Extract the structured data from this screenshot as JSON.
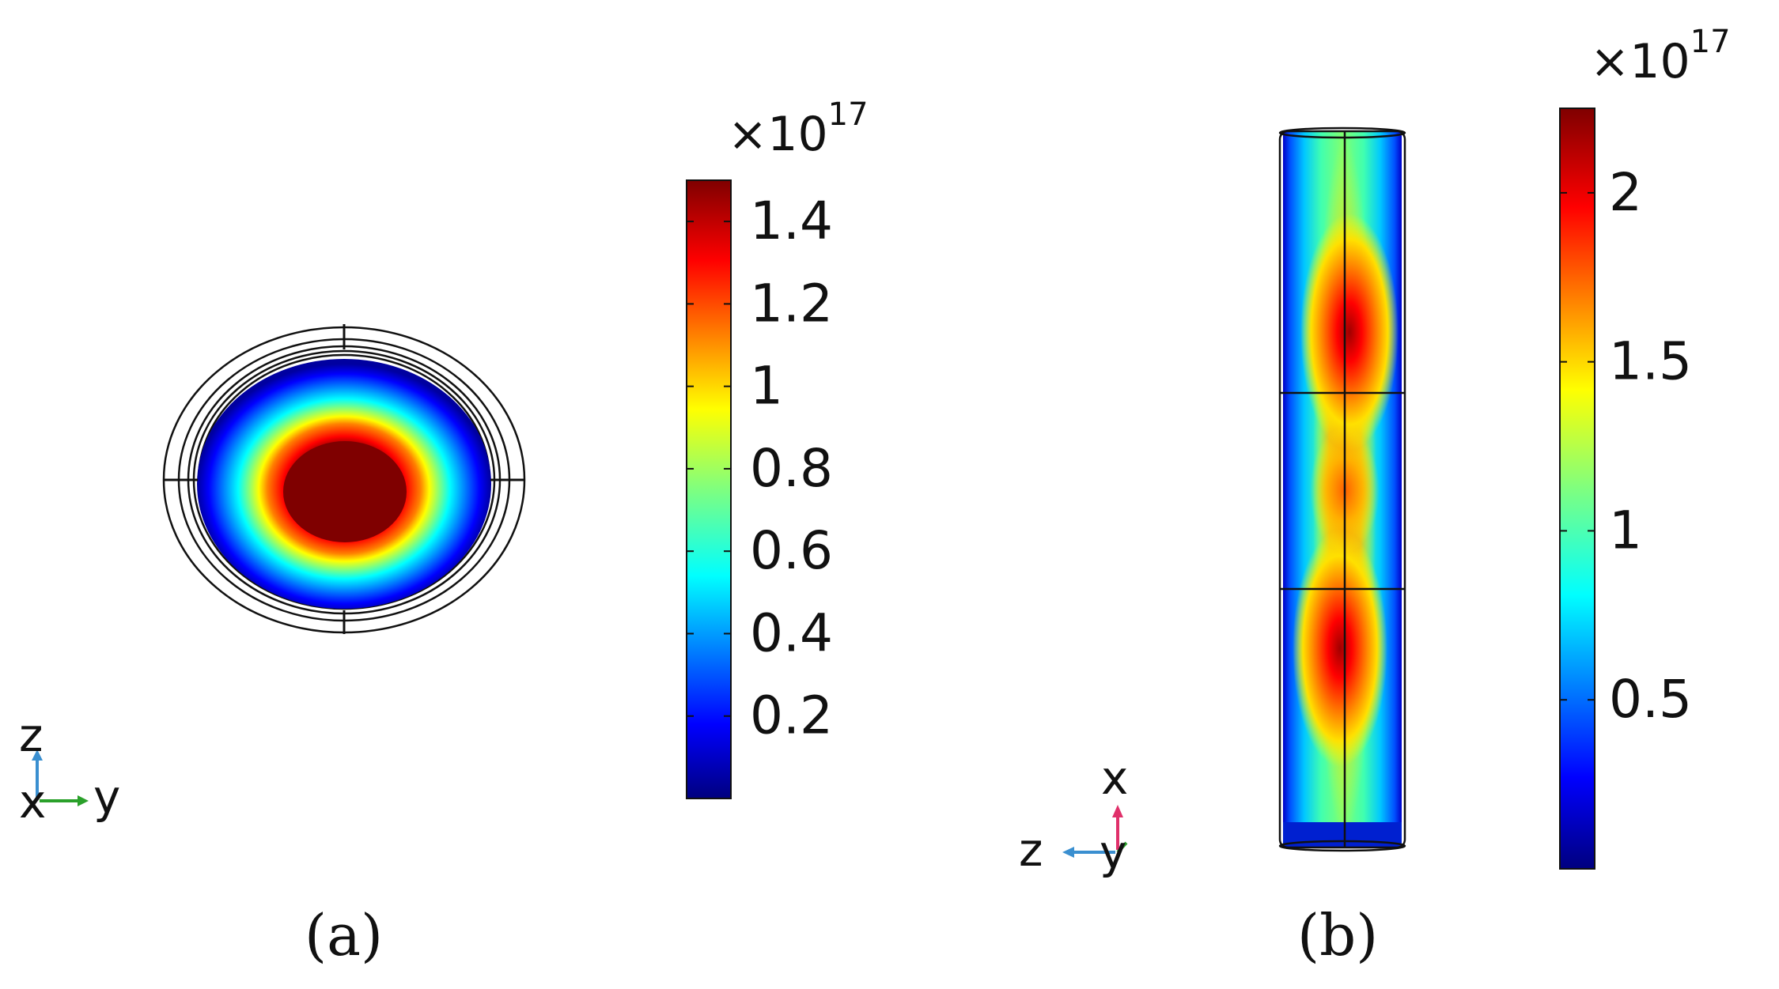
{
  "panels": [
    {
      "caption": "(a)",
      "colorbar": {
        "multiplier": "×10",
        "exponent": "17",
        "ticks": [
          "1.4",
          "1.2",
          "1",
          "0.8",
          "0.6",
          "0.4",
          "0.2"
        ],
        "tick_values": [
          1.4,
          1.2,
          1.0,
          0.8,
          0.6,
          0.4,
          0.2
        ],
        "range": [
          0,
          1.5
        ]
      },
      "axes": {
        "vertical": "z",
        "horizontal": "y",
        "out": "x"
      }
    },
    {
      "caption": "(b)",
      "colorbar": {
        "multiplier": "×10",
        "exponent": "17",
        "ticks": [
          "2",
          "1.5",
          "1",
          "0.5"
        ],
        "tick_values": [
          2.0,
          1.5,
          1.0,
          0.5
        ],
        "range": [
          0,
          2.25
        ]
      },
      "axes": {
        "vertical": "x",
        "horizontal": "z",
        "out": "y"
      }
    }
  ],
  "colormap": [
    "#00007f",
    "#0000ff",
    "#007fff",
    "#00ffff",
    "#7fff7f",
    "#ffff00",
    "#ff7f00",
    "#ff0000",
    "#7f0000"
  ],
  "axis_colors": {
    "z": "#3a8fd0",
    "y": "#2aa02a",
    "x": "#e0306a"
  }
}
